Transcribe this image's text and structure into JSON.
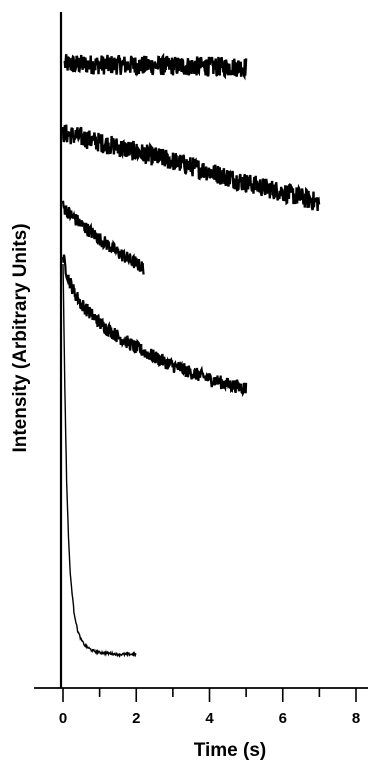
{
  "chart_data": {
    "type": "line",
    "title": "",
    "xlabel": "Time (s)",
    "ylabel": "Intensity (Arbitrary Units)",
    "xlim": [
      0,
      8
    ],
    "xticks": [
      0,
      2,
      4,
      6,
      8
    ],
    "tick_labels": [
      "0",
      "2",
      "4",
      "6",
      "8"
    ],
    "y_scale": "arbitrary, traces vertically offset",
    "grid": false,
    "legend": "none",
    "series": [
      {
        "x": [
          0.05,
          5.0
        ],
        "y": [
          0.971,
          0.966
        ],
        "noise": "high"
      },
      {
        "x": [
          0.0,
          0.5,
          1.0,
          2.0,
          3.0,
          4.0,
          5.0,
          6.0,
          7.0
        ],
        "y": [
          0.86,
          0.853,
          0.845,
          0.83,
          0.815,
          0.798,
          0.78,
          0.765,
          0.748
        ],
        "noise": "high"
      },
      {
        "x": [
          0.0,
          0.25,
          0.5,
          1.0,
          1.5,
          2.0,
          2.2
        ],
        "y": [
          0.742,
          0.726,
          0.713,
          0.69,
          0.668,
          0.65,
          0.643
        ],
        "noise": "medium"
      },
      {
        "x": [
          0.0,
          0.15,
          0.3,
          0.5,
          1.0,
          1.5,
          2.0,
          2.5,
          3.0,
          3.5,
          4.0,
          4.5,
          5.0
        ],
        "y": [
          0.66,
          0.626,
          0.605,
          0.585,
          0.555,
          0.533,
          0.515,
          0.5,
          0.486,
          0.475,
          0.465,
          0.456,
          0.45
        ],
        "noise": "medium"
      },
      {
        "x": [
          0.0,
          0.05,
          0.1,
          0.15,
          0.2,
          0.3,
          0.4,
          0.5,
          0.6,
          0.8,
          1.0,
          1.5,
          2.0
        ],
        "y": [
          0.65,
          0.45,
          0.3,
          0.21,
          0.15,
          0.09,
          0.06,
          0.045,
          0.036,
          0.028,
          0.025,
          0.022,
          0.022
        ],
        "noise": "low"
      }
    ]
  }
}
